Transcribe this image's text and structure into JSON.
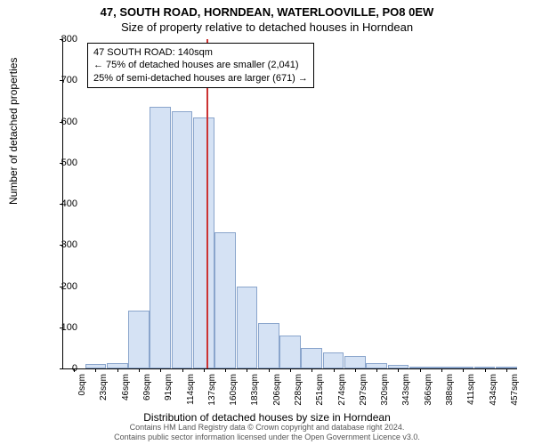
{
  "title_main": "47, SOUTH ROAD, HORNDEAN, WATERLOOVILLE, PO8 0EW",
  "title_sub": "Size of property relative to detached houses in Horndean",
  "annotation": {
    "line1": "47 SOUTH ROAD: 140sqm",
    "line2": "← 75% of detached houses are smaller (2,041)",
    "line3": "25% of semi-detached houses are larger (671) →"
  },
  "ylabel": "Number of detached properties",
  "xlabel": "Distribution of detached houses by size in Horndean",
  "footer1": "Contains HM Land Registry data © Crown copyright and database right 2024.",
  "footer2": "Contains public sector information licensed under the Open Government Licence v3.0.",
  "chart": {
    "type": "histogram",
    "ylim": [
      0,
      800
    ],
    "ytick_step": 100,
    "x_categories": [
      "0sqm",
      "23sqm",
      "46sqm",
      "69sqm",
      "91sqm",
      "114sqm",
      "137sqm",
      "160sqm",
      "183sqm",
      "206sqm",
      "228sqm",
      "251sqm",
      "274sqm",
      "297sqm",
      "320sqm",
      "343sqm",
      "366sqm",
      "388sqm",
      "411sqm",
      "434sqm",
      "457sqm"
    ],
    "values": [
      0,
      10,
      12,
      140,
      635,
      625,
      610,
      330,
      200,
      110,
      80,
      50,
      40,
      30,
      12,
      8,
      5,
      2,
      2,
      2,
      2
    ],
    "bar_fill": "#d5e2f4",
    "bar_border": "#8aa5cc",
    "background": "#ffffff",
    "marker_value_sqm": 140,
    "marker_color": "#cc3333",
    "title_fontsize": 13,
    "label_fontsize": 12,
    "tick_fontsize": 10
  }
}
